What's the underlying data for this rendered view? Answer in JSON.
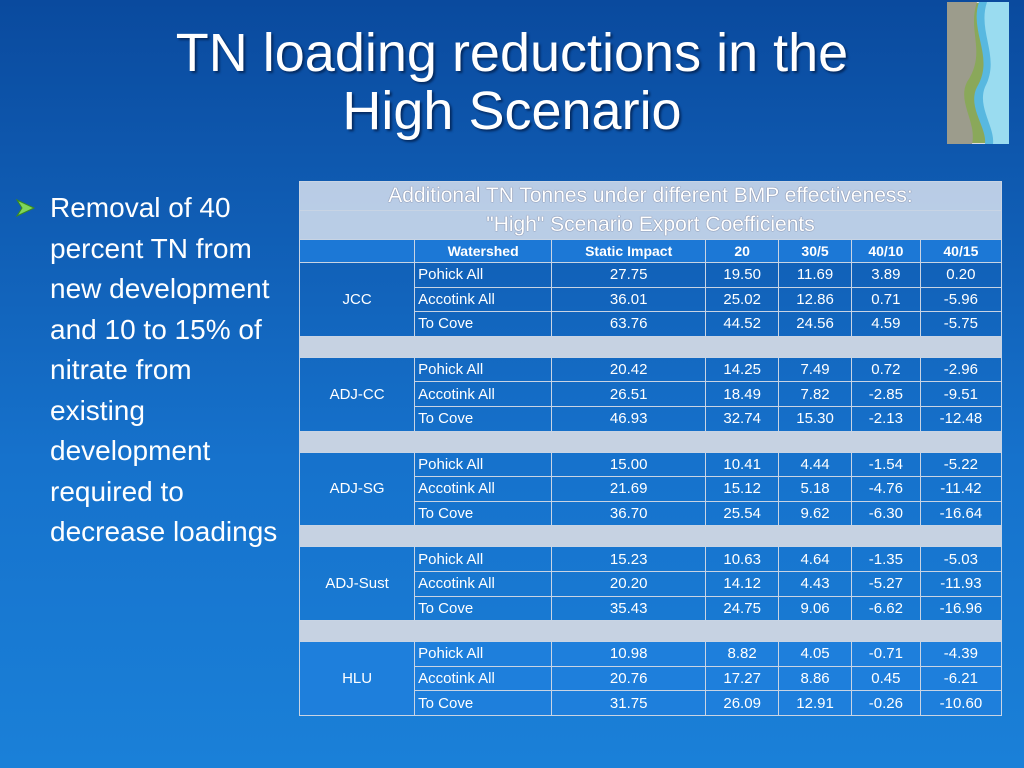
{
  "title": [
    "TN loading reductions in the",
    "High Scenario"
  ],
  "bullet": "Removal of 40 percent TN from new development and 10 to 15% of nitrate from existing development required to decrease loadings",
  "table": {
    "caption": [
      "Additional TN Tonnes under different BMP effectiveness:",
      "\"High\" Scenario Export Coefficients"
    ],
    "header": [
      "Watershed",
      "Static Impact",
      "20",
      "30/5",
      "40/10",
      "40/15"
    ],
    "groups": [
      {
        "name": "JCC",
        "rows": [
          [
            "Pohick All",
            "27.75",
            "19.50",
            "11.69",
            "3.89",
            "0.20"
          ],
          [
            "Accotink All",
            "36.01",
            "25.02",
            "12.86",
            "0.71",
            "-5.96"
          ],
          [
            "To Cove",
            "63.76",
            "44.52",
            "24.56",
            "4.59",
            "-5.75"
          ]
        ]
      },
      {
        "name": "ADJ-CC",
        "rows": [
          [
            "Pohick All",
            "20.42",
            "14.25",
            "7.49",
            "0.72",
            "-2.96"
          ],
          [
            "Accotink All",
            "26.51",
            "18.49",
            "7.82",
            "-2.85",
            "-9.51"
          ],
          [
            "To Cove",
            "46.93",
            "32.74",
            "15.30",
            "-2.13",
            "-12.48"
          ]
        ]
      },
      {
        "name": "ADJ-SG",
        "rows": [
          [
            "Pohick All",
            "15.00",
            "10.41",
            "4.44",
            "-1.54",
            "-5.22"
          ],
          [
            "Accotink All",
            "21.69",
            "15.12",
            "5.18",
            "-4.76",
            "-11.42"
          ],
          [
            "To Cove",
            "36.70",
            "25.54",
            "9.62",
            "-6.30",
            "-16.64"
          ]
        ]
      },
      {
        "name": "ADJ-Sust",
        "rows": [
          [
            "Pohick All",
            "15.23",
            "10.63",
            "4.64",
            "-1.35",
            "-5.03"
          ],
          [
            "Accotink All",
            "20.20",
            "14.12",
            "4.43",
            "-5.27",
            "-11.93"
          ],
          [
            "To Cove",
            "35.43",
            "24.75",
            "9.06",
            "-6.62",
            "-16.96"
          ]
        ]
      },
      {
        "name": "HLU",
        "rows": [
          [
            "Pohick All",
            "10.98",
            "8.82",
            "4.05",
            "-0.71",
            "-4.39"
          ],
          [
            "Accotink All",
            "20.76",
            "17.27",
            "8.86",
            "0.45",
            "-6.21"
          ],
          [
            "To Cove",
            "31.75",
            "26.09",
            "12.91",
            "-0.26",
            "-10.60"
          ]
        ]
      }
    ]
  }
}
